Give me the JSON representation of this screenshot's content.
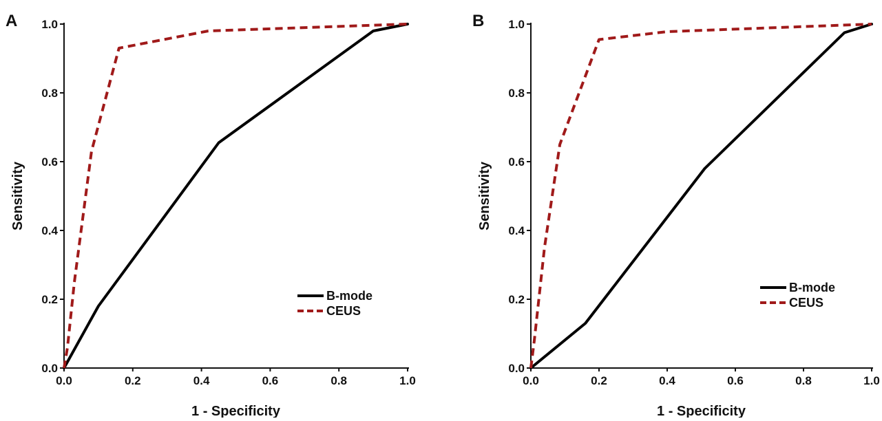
{
  "chart_data": [
    {
      "panel_label": "A",
      "type": "line",
      "xlabel": "1 - Specificity",
      "ylabel": "Sensitivity",
      "xlim": [
        0,
        1
      ],
      "ylim": [
        0,
        1
      ],
      "xticks": [
        "0.0",
        "0.2",
        "0.4",
        "0.6",
        "0.8",
        "1.0"
      ],
      "yticks": [
        "0.0",
        "0.2",
        "0.4",
        "0.6",
        "0.8",
        "1.0"
      ],
      "grid": false,
      "legend": "bottom-right",
      "series": [
        {
          "name": "B-mode",
          "color": "#000000",
          "dash": "solid",
          "points": [
            [
              0,
              0
            ],
            [
              0.1,
              0.18
            ],
            [
              0.45,
              0.655
            ],
            [
              0.9,
              0.98
            ],
            [
              1.0,
              1.0
            ]
          ]
        },
        {
          "name": "CEUS",
          "color": "#a01a1a",
          "dash": "dashed",
          "points": [
            [
              0,
              0
            ],
            [
              0.01,
              0.06
            ],
            [
              0.03,
              0.25
            ],
            [
              0.08,
              0.63
            ],
            [
              0.16,
              0.93
            ],
            [
              0.42,
              0.98
            ],
            [
              1.0,
              1.0
            ]
          ]
        }
      ]
    },
    {
      "panel_label": "B",
      "type": "line",
      "xlabel": "1 - Specificity",
      "ylabel": "Sensitivity",
      "xlim": [
        0,
        1
      ],
      "ylim": [
        0,
        1
      ],
      "xticks": [
        "0.0",
        "0.2",
        "0.4",
        "0.6",
        "0.8",
        "1.0"
      ],
      "yticks": [
        "0.0",
        "0.2",
        "0.4",
        "0.6",
        "0.8",
        "1.0"
      ],
      "grid": false,
      "legend": "bottom-right",
      "series": [
        {
          "name": "B-mode",
          "color": "#000000",
          "dash": "solid",
          "points": [
            [
              0,
              0
            ],
            [
              0.16,
              0.13
            ],
            [
              0.51,
              0.58
            ],
            [
              0.92,
              0.975
            ],
            [
              1.0,
              1.0
            ]
          ]
        },
        {
          "name": "CEUS",
          "color": "#a01a1a",
          "dash": "dashed",
          "points": [
            [
              0,
              0
            ],
            [
              0.01,
              0.08
            ],
            [
              0.04,
              0.35
            ],
            [
              0.085,
              0.65
            ],
            [
              0.2,
              0.955
            ],
            [
              0.4,
              0.978
            ],
            [
              1.0,
              1.0
            ]
          ]
        }
      ]
    }
  ]
}
